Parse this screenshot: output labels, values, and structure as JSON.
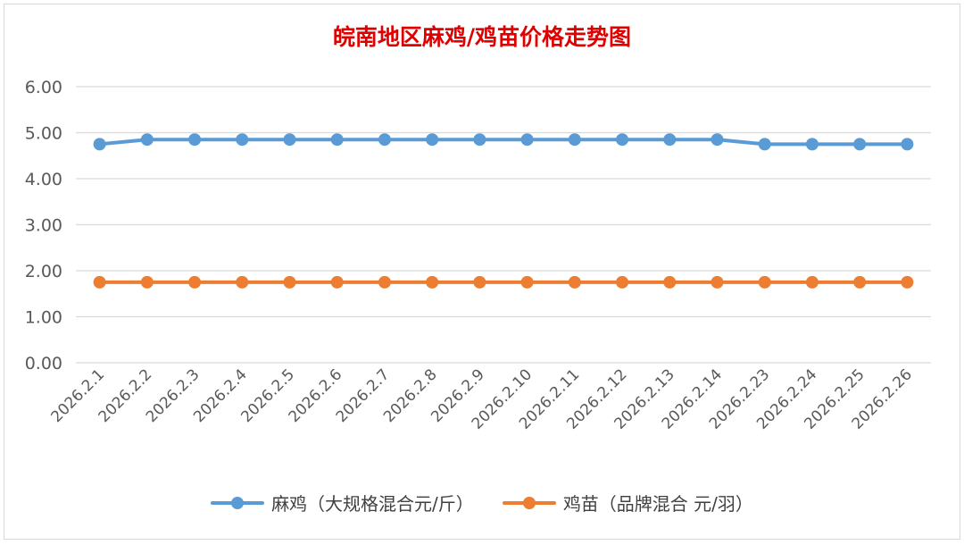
{
  "chart_data": {
    "type": "line",
    "title": "皖南地区麻鸡/鸡苗价格走势图",
    "categories": [
      "2026.2.1",
      "2026.2.2",
      "2026.2.3",
      "2026.2.4",
      "2026.2.5",
      "2026.2.6",
      "2026.2.7",
      "2026.2.8",
      "2026.2.9",
      "2026.2.10",
      "2026.2.11",
      "2026.2.12",
      "2026.2.13",
      "2026.2.14",
      "2026.2.23",
      "2026.2.24",
      "2026.2.25",
      "2026.2.26"
    ],
    "yticks": [
      "0.00",
      "1.00",
      "2.00",
      "3.00",
      "4.00",
      "5.00",
      "6.00"
    ],
    "ylim": [
      0,
      6
    ],
    "grid": true,
    "legend_position": "bottom",
    "series": [
      {
        "name": "麻鸡（大规格混合元/斤）",
        "color": "#5b9bd5",
        "values": [
          4.75,
          4.85,
          4.85,
          4.85,
          4.85,
          4.85,
          4.85,
          4.85,
          4.85,
          4.85,
          4.85,
          4.85,
          4.85,
          4.85,
          4.75,
          4.75,
          4.75,
          4.75
        ]
      },
      {
        "name": "鸡苗（品牌混合 元/羽）",
        "color": "#ed7d31",
        "values": [
          1.75,
          1.75,
          1.75,
          1.75,
          1.75,
          1.75,
          1.75,
          1.75,
          1.75,
          1.75,
          1.75,
          1.75,
          1.75,
          1.75,
          1.75,
          1.75,
          1.75,
          1.75
        ]
      }
    ]
  }
}
